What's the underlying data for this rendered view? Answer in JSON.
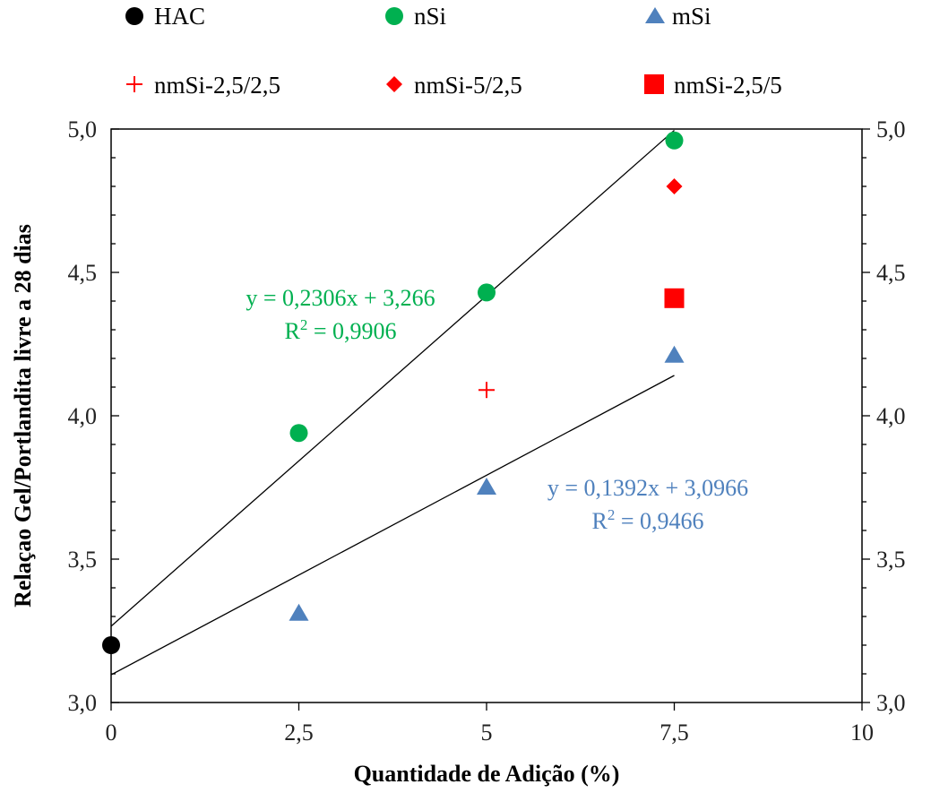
{
  "chart_data": {
    "type": "scatter",
    "title": "",
    "xlabel": "Quantidade de Adição (%)",
    "ylabel": "Relaçao Gel/Portlandita livre a 28 dias",
    "xlim": [
      0,
      10
    ],
    "ylim": [
      3.0,
      5.0
    ],
    "x_ticks": [
      {
        "value": 0,
        "label": "0"
      },
      {
        "value": 2.5,
        "label": "2,5"
      },
      {
        "value": 5,
        "label": "5"
      },
      {
        "value": 7.5,
        "label": "7,5"
      },
      {
        "value": 10,
        "label": "10"
      }
    ],
    "y_ticks": [
      {
        "value": 3.0,
        "label": "3,0"
      },
      {
        "value": 3.5,
        "label": "3,5"
      },
      {
        "value": 4.0,
        "label": "4,0"
      },
      {
        "value": 4.5,
        "label": "4,5"
      },
      {
        "value": 5.0,
        "label": "5,0"
      }
    ],
    "legend_position": "top",
    "series": [
      {
        "name": "HAC",
        "marker": "circle",
        "color": "#000000",
        "points": [
          [
            0,
            3.2
          ]
        ]
      },
      {
        "name": "nSi",
        "marker": "circle",
        "color": "#00b050",
        "points": [
          [
            2.5,
            3.94
          ],
          [
            5,
            4.43
          ],
          [
            7.5,
            4.96
          ]
        ]
      },
      {
        "name": "mSi",
        "marker": "triangle",
        "color": "#4f81bd",
        "points": [
          [
            2.5,
            3.31
          ],
          [
            5,
            3.75
          ],
          [
            7.5,
            4.21
          ]
        ]
      },
      {
        "name": "nmSi-2,5/2,5",
        "marker": "plus",
        "color": "#ff0000",
        "points": [
          [
            5,
            4.09
          ]
        ]
      },
      {
        "name": "nmSi-5/2,5",
        "marker": "diamond",
        "color": "#ff0000",
        "points": [
          [
            7.5,
            4.8
          ]
        ]
      },
      {
        "name": "nmSi-2,5/5",
        "marker": "square",
        "color": "#ff0000",
        "points": [
          [
            7.5,
            4.41
          ]
        ]
      }
    ],
    "trendlines": [
      {
        "series": "nSi",
        "slope": 0.2306,
        "intercept": 3.266,
        "x_range": [
          0,
          7.5
        ],
        "color": "#000000",
        "equation": "y = 0,2306x + 3,266",
        "r2_prefix": "R",
        "r2_value": " = 0,9906",
        "label_color": "#00b050"
      },
      {
        "series": "mSi",
        "slope": 0.1392,
        "intercept": 3.0966,
        "x_range": [
          0,
          7.5
        ],
        "color": "#000000",
        "equation": "y = 0,1392x + 3,0966",
        "r2_prefix": "R",
        "r2_value": " = 0,9466",
        "label_color": "#4f81bd"
      }
    ]
  }
}
